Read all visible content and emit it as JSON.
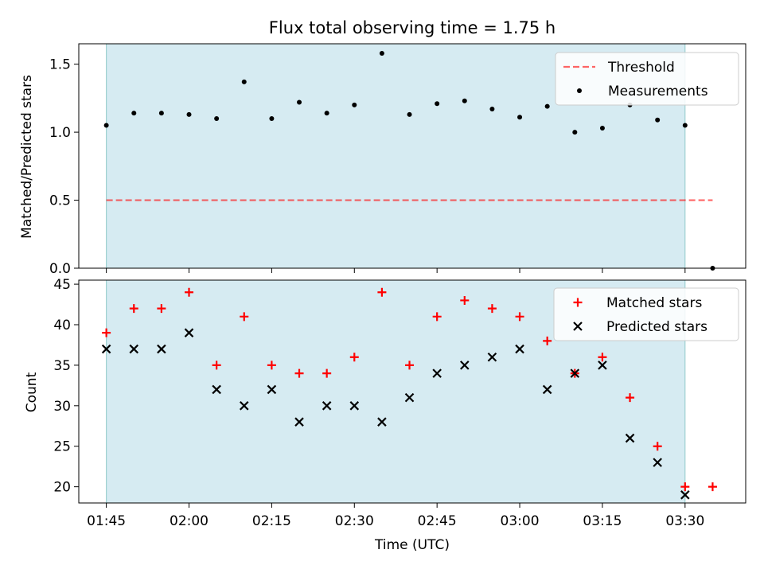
{
  "title": "Flux total observing time = 1.75 h",
  "colors": {
    "shade": "#add8e6",
    "threshold": "#ff0000",
    "measurements": "#000000",
    "matched": "#ff0000",
    "predicted": "#000000"
  },
  "chart_data": [
    {
      "type": "scatter",
      "panel": "top",
      "ylabel": "Matched/Predicted stars",
      "ylim": [
        0,
        1.65
      ],
      "yticks": [
        0.0,
        0.5,
        1.0,
        1.5
      ],
      "ytick_labels": [
        "0.0",
        "0.5",
        "1.0",
        "1.5"
      ],
      "shaded_span": [
        "01:45",
        "03:30"
      ],
      "legend": {
        "position": "top-right",
        "entries": [
          "Threshold",
          "Measurements"
        ]
      },
      "series": [
        {
          "name": "Threshold",
          "style": "dashed-line",
          "x": [
            "01:45",
            "03:35"
          ],
          "values": [
            0.5,
            0.5
          ]
        },
        {
          "name": "Measurements",
          "style": "dot",
          "x": [
            "01:45",
            "01:50",
            "01:55",
            "02:00",
            "02:05",
            "02:10",
            "02:15",
            "02:20",
            "02:25",
            "02:30",
            "02:35",
            "02:40",
            "02:45",
            "02:50",
            "02:55",
            "03:00",
            "03:05",
            "03:10",
            "03:15",
            "03:20",
            "03:25",
            "03:30",
            "03:35"
          ],
          "values": [
            1.05,
            1.14,
            1.14,
            1.13,
            1.1,
            1.37,
            1.1,
            1.22,
            1.14,
            1.2,
            1.58,
            1.13,
            1.21,
            1.23,
            1.17,
            1.11,
            1.19,
            1.0,
            1.03,
            1.2,
            1.09,
            1.05,
            0.0
          ]
        }
      ]
    },
    {
      "type": "scatter",
      "panel": "bottom",
      "xlabel": "Time (UTC)",
      "ylabel": "Count",
      "ylim": [
        18,
        45.5
      ],
      "yticks": [
        20,
        25,
        30,
        35,
        40,
        45
      ],
      "ytick_labels": [
        "20",
        "25",
        "30",
        "35",
        "40",
        "45"
      ],
      "xticks": [
        "01:45",
        "02:00",
        "02:15",
        "02:30",
        "02:45",
        "03:00",
        "03:15",
        "03:30"
      ],
      "shaded_span": [
        "01:45",
        "03:30"
      ],
      "legend": {
        "position": "top-right",
        "entries": [
          "Matched stars",
          "Predicted stars"
        ]
      },
      "series": [
        {
          "name": "Matched stars",
          "style": "plus",
          "x": [
            "01:45",
            "01:50",
            "01:55",
            "02:00",
            "02:05",
            "02:10",
            "02:15",
            "02:20",
            "02:25",
            "02:30",
            "02:35",
            "02:40",
            "02:45",
            "02:50",
            "02:55",
            "03:00",
            "03:05",
            "03:10",
            "03:15",
            "03:20",
            "03:25",
            "03:30",
            "03:35"
          ],
          "values": [
            39,
            42,
            42,
            44,
            35,
            41,
            35,
            34,
            34,
            36,
            44,
            35,
            41,
            43,
            42,
            41,
            38,
            34,
            36,
            31,
            25,
            20,
            20
          ]
        },
        {
          "name": "Predicted stars",
          "style": "x",
          "x": [
            "01:45",
            "01:50",
            "01:55",
            "02:00",
            "02:05",
            "02:10",
            "02:15",
            "02:20",
            "02:25",
            "02:30",
            "02:35",
            "02:40",
            "02:45",
            "02:50",
            "02:55",
            "03:00",
            "03:05",
            "03:10",
            "03:15",
            "03:20",
            "03:25",
            "03:30"
          ],
          "values": [
            37,
            37,
            37,
            39,
            32,
            30,
            32,
            28,
            30,
            30,
            28,
            31,
            34,
            35,
            36,
            37,
            32,
            34,
            35,
            26,
            23,
            19
          ]
        }
      ]
    }
  ]
}
